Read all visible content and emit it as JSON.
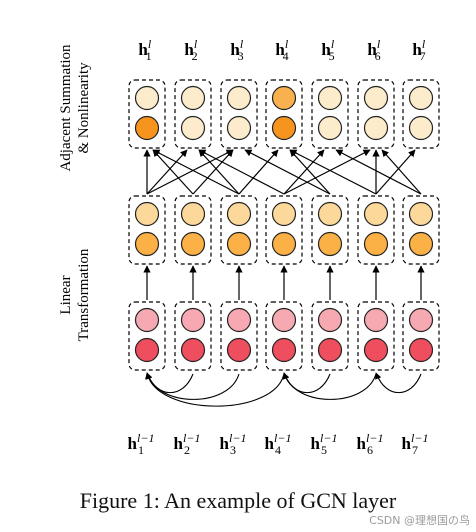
{
  "diagram": {
    "top_labels": [
      {
        "base": "h",
        "sub": "1",
        "sup": "l"
      },
      {
        "base": "h",
        "sub": "2",
        "sup": "l"
      },
      {
        "base": "h",
        "sub": "3",
        "sup": "l"
      },
      {
        "base": "h",
        "sub": "4",
        "sup": "l"
      },
      {
        "base": "h",
        "sub": "5",
        "sup": "l"
      },
      {
        "base": "h",
        "sub": "6",
        "sup": "l"
      },
      {
        "base": "h",
        "sub": "7",
        "sup": "l"
      }
    ],
    "bottom_labels": [
      {
        "base": "h",
        "sub": "1",
        "sup": "l−1"
      },
      {
        "base": "h",
        "sub": "2",
        "sup": "l−1"
      },
      {
        "base": "h",
        "sub": "3",
        "sup": "l−1"
      },
      {
        "base": "h",
        "sub": "4",
        "sup": "l−1"
      },
      {
        "base": "h",
        "sub": "5",
        "sup": "l−1"
      },
      {
        "base": "h",
        "sub": "6",
        "sup": "l−1"
      },
      {
        "base": "h",
        "sub": "7",
        "sup": "l−1"
      }
    ],
    "side_label_top": [
      "Adjacent Summation",
      "& Nonlinearity"
    ],
    "side_label_bottom": [
      "Linear",
      "Transformation"
    ],
    "layers": {
      "top": {
        "upper_colors": [
          "#fdeccb",
          "#fdeccb",
          "#fdeccb",
          "#f9b04f",
          "#fdeccb",
          "#fdeccb",
          "#fdeccb"
        ],
        "lower_colors": [
          "#f7941d",
          "#fdeccb",
          "#fdeccb",
          "#f7941d",
          "#fdeccb",
          "#fdeccb",
          "#fdeccb"
        ]
      },
      "middle": {
        "upper_colors": [
          "#fcd99a",
          "#fcd99a",
          "#fcd99a",
          "#fcd99a",
          "#fcd99a",
          "#fcd99a",
          "#fcd99a"
        ],
        "lower_colors": [
          "#fbb146",
          "#fbb146",
          "#fbb146",
          "#fbb146",
          "#fbb146",
          "#fbb146",
          "#fbb146"
        ]
      },
      "bottom": {
        "upper_colors": [
          "#f6a9b0",
          "#f6a9b0",
          "#f6a9b0",
          "#f6a9b0",
          "#f6a9b0",
          "#f6a9b0",
          "#f6a9b0"
        ],
        "lower_colors": [
          "#ee4e5e",
          "#ee4e5e",
          "#ee4e5e",
          "#ee4e5e",
          "#ee4e5e",
          "#ee4e5e",
          "#ee4e5e"
        ]
      }
    },
    "aggregation_edges": [
      [
        1,
        1
      ],
      [
        1,
        2
      ],
      [
        1,
        3
      ],
      [
        2,
        1
      ],
      [
        2,
        3
      ],
      [
        3,
        1
      ],
      [
        3,
        2
      ],
      [
        3,
        4
      ],
      [
        4,
        2
      ],
      [
        4,
        5
      ],
      [
        4,
        6
      ],
      [
        5,
        3
      ],
      [
        5,
        4
      ],
      [
        6,
        4
      ],
      [
        6,
        6
      ],
      [
        6,
        7
      ],
      [
        7,
        5
      ],
      [
        7,
        6
      ]
    ],
    "input_arcs": [
      [
        1,
        2
      ],
      [
        1,
        3
      ],
      [
        1,
        4
      ],
      [
        4,
        5
      ],
      [
        4,
        6
      ],
      [
        6,
        7
      ]
    ]
  },
  "caption": "Figure 1:  An example of GCN layer",
  "watermark": "CSDN @理想国の鸟"
}
